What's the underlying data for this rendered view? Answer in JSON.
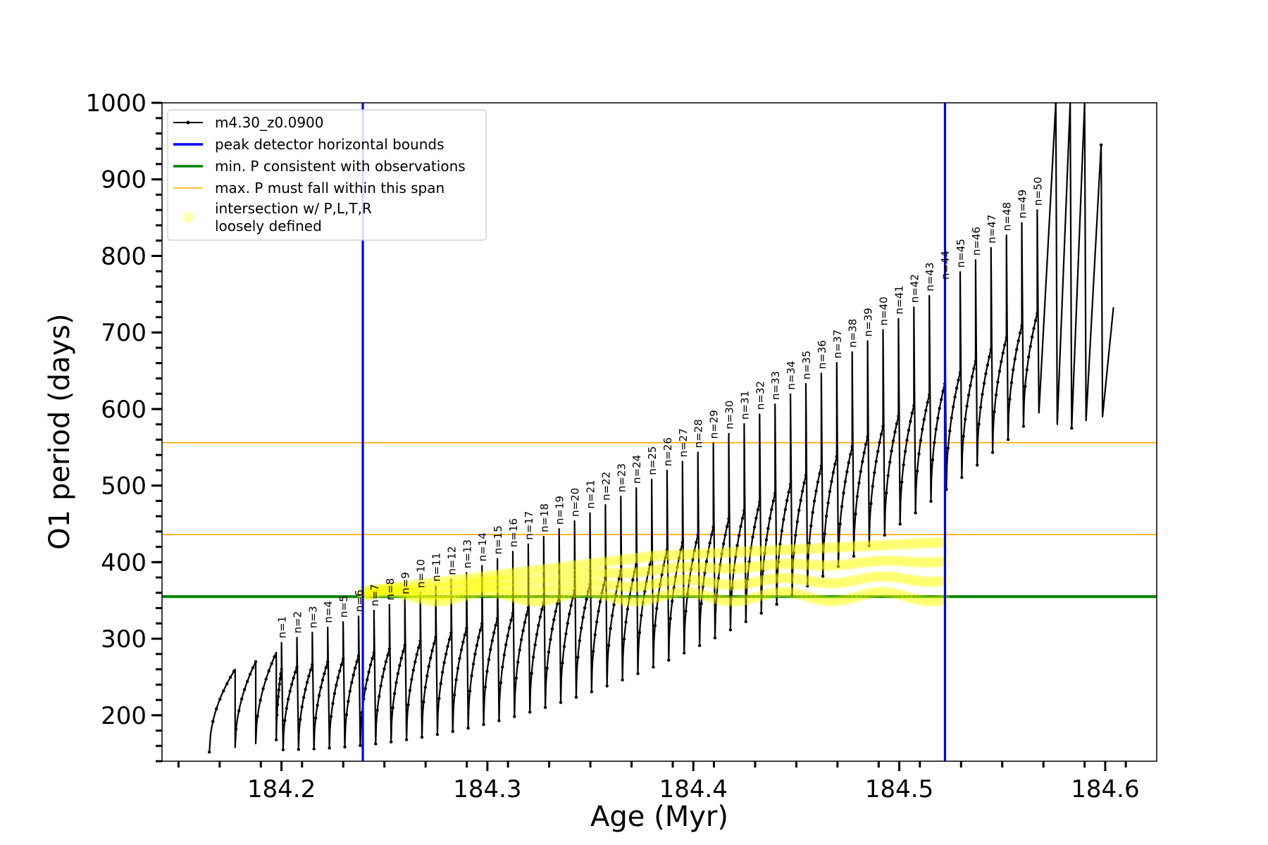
{
  "chart_data": {
    "type": "line",
    "title": "",
    "xlabel": "Age (Myr)",
    "ylabel": "O1 period (days)",
    "xlim": [
      184.142,
      184.625
    ],
    "ylim": [
      140,
      1000
    ],
    "xticks": [
      184.2,
      184.3,
      184.4,
      184.5,
      184.6
    ],
    "xtick_labels": [
      "184.2",
      "184.3",
      "184.4",
      "184.5",
      "184.6"
    ],
    "yticks": [
      200,
      300,
      400,
      500,
      600,
      700,
      800,
      900,
      1000
    ],
    "ytick_labels": [
      "200",
      "300",
      "400",
      "500",
      "600",
      "700",
      "800",
      "900",
      "1000"
    ],
    "grid": false,
    "legend_position": "top-left",
    "legend": [
      {
        "label": "m4.30_z0.0900",
        "kind": "line-marker",
        "color": "#000000"
      },
      {
        "label": "peak detector horizontal bounds",
        "kind": "line",
        "color": "#0000ff"
      },
      {
        "label": "min. P consistent with observations",
        "kind": "line",
        "color": "#008000"
      },
      {
        "label": "max. P must fall within this span",
        "kind": "thin-line",
        "color": "#ffa500"
      },
      {
        "label": "intersection w/ P,L,T,R",
        "label2": "loosely defined",
        "kind": "dot",
        "color": "#ffff00"
      }
    ],
    "vertical_lines": [
      {
        "x": 184.2395,
        "color": "#0000ff",
        "role": "peak detector horizontal bounds"
      },
      {
        "x": 184.5222,
        "color": "#0000ff",
        "role": "peak detector horizontal bounds"
      }
    ],
    "horizontal_lines": [
      {
        "y": 355,
        "color": "#008000",
        "role": "min. P consistent with observations"
      },
      {
        "y": 436,
        "color": "#ffa500",
        "role": "max. P lower"
      },
      {
        "y": 556,
        "color": "#ffa500",
        "role": "max. P upper"
      }
    ],
    "pulse_labels": [
      "n=1",
      "n=2",
      "n=3",
      "n=4",
      "n=5",
      "n=6",
      "n=7",
      "n=8",
      "n=9",
      "n=10",
      "n=11",
      "n=12",
      "n=13",
      "n=14",
      "n=15",
      "n=16",
      "n=17",
      "n=18",
      "n=19",
      "n=20",
      "n=21",
      "n=22",
      "n=23",
      "n=24",
      "n=25",
      "n=26",
      "n=27",
      "n=28",
      "n=29",
      "n=30",
      "n=31",
      "n=32",
      "n=33",
      "n=34",
      "n=35",
      "n=36",
      "n=37",
      "n=38",
      "n=39",
      "n=40",
      "n=41",
      "n=42",
      "n=43",
      "n=44",
      "n=45",
      "n=46",
      "n=47",
      "n=48",
      "n=49",
      "n=50"
    ],
    "pulses": {
      "count": 50,
      "age_first": 184.2,
      "age_last": 184.567,
      "peak_first": 295,
      "peak_last": 860,
      "base_first": 260,
      "base_last": 725,
      "lead_cycles": [
        {
          "t0": 184.165,
          "t1": 184.1775,
          "base": 260,
          "min": 152
        },
        {
          "t0": 184.1775,
          "t1": 184.1875,
          "base": 270,
          "min": 158
        },
        {
          "t0": 184.1875,
          "t1": 184.1975,
          "base": 282,
          "min": 163
        }
      ],
      "tail_spikes": [
        {
          "x": 184.576,
          "peak": 1000,
          "min": 580
        },
        {
          "x": 184.583,
          "peak": 1000,
          "min": 575
        },
        {
          "x": 184.59,
          "peak": 1000,
          "min": 585
        },
        {
          "x": 184.598,
          "peak": 945,
          "min": 590
        }
      ],
      "end_age": 184.604,
      "end_value": 733
    },
    "intersection_region": {
      "age_start": 184.2395,
      "age_end": 184.522,
      "p_min": 355,
      "p_max_start": 362,
      "p_max_mid": 408,
      "p_max_end": 426
    }
  }
}
